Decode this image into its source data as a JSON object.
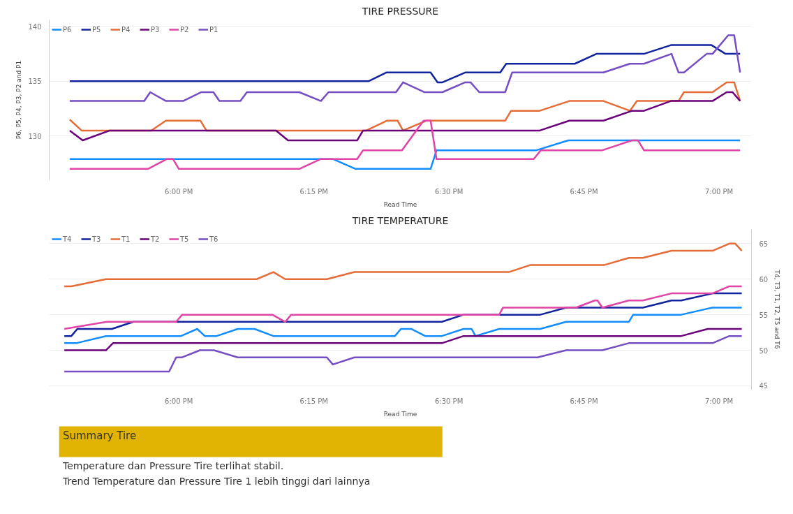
{
  "chart_data": [
    {
      "type": "line",
      "title": "TIRE PRESSURE",
      "xlabel": "Read Time",
      "ylabel": "P6, P5, P4, P3, P2 and P1",
      "legend": "top left",
      "grid": "y",
      "marker": "none",
      "line_style": "solid",
      "xlim": [
        17.76,
        19.06
      ],
      "xticks": [
        {
          "value": 18,
          "label": "6:00 PM"
        },
        {
          "value": 18.25,
          "label": "6:15 PM"
        },
        {
          "value": 18.5,
          "label": "6:30 PM"
        },
        {
          "value": 18.75,
          "label": "6:45 PM"
        },
        {
          "value": 19,
          "label": "7:00 PM"
        }
      ],
      "ylim": [
        126,
        140.6
      ],
      "yticks": [
        130,
        135,
        140
      ],
      "series": [
        {
          "name": "P6",
          "color": "#118dff",
          "x": [
            17.798,
            18.285,
            18.327,
            18.466,
            18.477,
            18.662,
            18.721,
            19.039
          ],
          "values": [
            127.9,
            127.9,
            127,
            127,
            128.7,
            128.7,
            129.6,
            129.6
          ]
        },
        {
          "name": "P5",
          "color": "#12239e",
          "x": [
            17.798,
            18.351,
            18.384,
            18.466,
            18.479,
            18.488,
            18.53,
            18.595,
            18.606,
            18.733,
            18.773,
            18.861,
            18.911,
            18.986,
            19.012,
            19.039
          ],
          "values": [
            135,
            135,
            135.8,
            135.8,
            134.9,
            134.9,
            135.8,
            135.8,
            136.6,
            136.6,
            137.5,
            137.5,
            138.3,
            138.3,
            137.5,
            137.5
          ]
        },
        {
          "name": "P4",
          "color": "#e66c37",
          "x": [
            17.798,
            17.82,
            17.949,
            17.976,
            18.04,
            18.051,
            18.347,
            18.385,
            18.405,
            18.415,
            18.458,
            18.604,
            18.615,
            18.668,
            18.723,
            18.786,
            18.835,
            18.848,
            18.925,
            18.935,
            18.988,
            19.014,
            19.028,
            19.039
          ],
          "values": [
            131.5,
            130.5,
            130.5,
            131.4,
            131.4,
            130.5,
            130.5,
            131.4,
            131.4,
            130.5,
            131.4,
            131.4,
            132.3,
            132.3,
            133.2,
            133.2,
            132.3,
            133.2,
            133.2,
            134,
            134,
            134.9,
            134.9,
            133.2
          ]
        },
        {
          "name": "P3",
          "color": "#6b007b",
          "x": [
            17.798,
            17.822,
            17.872,
            18.18,
            18.202,
            18.33,
            18.341,
            18.668,
            18.723,
            18.786,
            18.839,
            18.861,
            18.911,
            18.988,
            19.014,
            19.025,
            19.039
          ],
          "values": [
            130.5,
            129.6,
            130.5,
            130.5,
            129.6,
            129.6,
            130.5,
            130.5,
            131.4,
            131.4,
            132.3,
            132.3,
            133.2,
            133.2,
            134,
            134,
            133.2
          ]
        },
        {
          "name": "P2",
          "color": "#e044a7",
          "x": [
            17.798,
            17.943,
            17.978,
            17.989,
            18.0,
            18.223,
            18.263,
            18.33,
            18.341,
            18.413,
            18.453,
            18.466,
            18.477,
            18.657,
            18.67,
            18.784,
            18.839,
            18.85,
            18.861,
            19.039
          ],
          "values": [
            127,
            127,
            127.9,
            127.9,
            127,
            127,
            127.9,
            127.9,
            128.7,
            128.7,
            131.4,
            131.4,
            127.9,
            127.9,
            128.7,
            128.7,
            129.6,
            129.6,
            128.7,
            128.7
          ]
        },
        {
          "name": "P1",
          "color": "#744ec2",
          "x": [
            17.798,
            17.936,
            17.947,
            17.976,
            18.008,
            18.041,
            18.064,
            18.075,
            18.114,
            18.126,
            18.223,
            18.263,
            18.277,
            18.402,
            18.415,
            18.455,
            18.488,
            18.53,
            18.54,
            18.556,
            18.604,
            18.617,
            18.786,
            18.835,
            18.861,
            18.912,
            18.925,
            18.935,
            18.977,
            18.988,
            19.017,
            19.028,
            19.039
          ],
          "values": [
            133.2,
            133.2,
            134,
            133.2,
            133.2,
            134,
            134,
            133.2,
            133.2,
            134,
            134,
            133.2,
            134,
            134,
            134.9,
            134,
            134,
            134.9,
            134.9,
            134,
            134,
            135.8,
            135.8,
            136.6,
            136.6,
            137.5,
            135.8,
            135.8,
            137.5,
            137.5,
            139.2,
            139.2,
            135.8
          ]
        }
      ]
    },
    {
      "type": "line",
      "title": "TIRE TEMPERATURE",
      "xlabel": "Read Time",
      "y2label": "T4, T3, T1, T2, T5 and T6",
      "legend": "top left",
      "grid": "y",
      "marker": "none",
      "line_style": "solid",
      "xlim": [
        17.76,
        19.06
      ],
      "xticks": [
        {
          "value": 18,
          "label": "6:00 PM"
        },
        {
          "value": 18.25,
          "label": "6:15 PM"
        },
        {
          "value": 18.5,
          "label": "6:30 PM"
        },
        {
          "value": 18.75,
          "label": "6:45 PM"
        },
        {
          "value": 19,
          "label": "7:00 PM"
        }
      ],
      "y2lim": [
        44.5,
        67
      ],
      "y2ticks": [
        45,
        50,
        55,
        60,
        65
      ],
      "series": [
        {
          "name": "T4",
          "color": "#118dff",
          "axis": "y2",
          "x": [
            17.788,
            17.81,
            17.865,
            18.004,
            18.034,
            18.048,
            18.07,
            18.109,
            18.14,
            18.175,
            18.4,
            18.411,
            18.43,
            18.456,
            18.487,
            18.527,
            18.542,
            18.549,
            18.593,
            18.669,
            18.717,
            18.833,
            18.841,
            18.93,
            18.988,
            19.042
          ],
          "values": [
            51,
            51,
            52,
            52,
            53,
            52,
            52,
            53,
            53,
            52,
            52,
            53,
            53,
            52,
            52,
            53,
            53,
            52,
            53,
            53,
            54,
            54,
            55,
            55,
            56,
            56
          ]
        },
        {
          "name": "T3",
          "color": "#12239e",
          "axis": "y2",
          "x": [
            17.788,
            17.801,
            17.812,
            17.876,
            17.916,
            18.487,
            18.527,
            18.669,
            18.717,
            18.859,
            18.912,
            18.93,
            18.988,
            19.042
          ],
          "values": [
            52,
            52,
            53,
            53,
            54,
            54,
            55,
            55,
            56,
            56,
            57,
            57,
            58,
            58
          ]
        },
        {
          "name": "T1",
          "color": "#e66c37",
          "axis": "y2",
          "x": [
            17.788,
            17.801,
            17.865,
            18.144,
            18.175,
            18.197,
            18.274,
            18.325,
            18.611,
            18.651,
            18.788,
            18.833,
            18.859,
            18.912,
            18.988,
            19.019,
            19.03,
            19.042
          ],
          "values": [
            59,
            59,
            60,
            60,
            61,
            60,
            60,
            61,
            61,
            62,
            62,
            63,
            63,
            64,
            64,
            65,
            65,
            64
          ]
        },
        {
          "name": "T2",
          "color": "#6b007b",
          "axis": "y2",
          "x": [
            17.788,
            17.865,
            17.878,
            18.487,
            18.527,
            18.93,
            18.979,
            19.042
          ],
          "values": [
            50,
            50,
            51,
            51,
            52,
            52,
            53,
            53
          ]
        },
        {
          "name": "T5",
          "color": "#e044a7",
          "axis": "y2",
          "x": [
            17.788,
            17.867,
            17.995,
            18.006,
            18.173,
            18.197,
            18.208,
            18.593,
            18.6,
            18.735,
            18.77,
            18.775,
            18.784,
            18.833,
            18.859,
            18.912,
            18.988,
            19.019,
            19.042
          ],
          "values": [
            53,
            54,
            54,
            55,
            55,
            54,
            55,
            55,
            56,
            56,
            57,
            57,
            56,
            57,
            57,
            58,
            58,
            59,
            59
          ]
        },
        {
          "name": "T6",
          "color": "#744ec2",
          "axis": "y2",
          "x": [
            17.788,
            17.982,
            17.995,
            18.006,
            18.039,
            18.065,
            18.109,
            18.274,
            18.285,
            18.325,
            18.664,
            18.717,
            18.784,
            18.833,
            18.988,
            19.019,
            19.042
          ],
          "values": [
            47,
            47,
            49,
            49,
            50,
            50,
            49,
            49,
            48,
            49,
            49,
            50,
            50,
            51,
            51,
            52,
            52
          ]
        }
      ]
    },
    {
      "type": "other",
      "title": "Summary Tire",
      "annotations": [
        "Temperature dan Pressure Tire terlihat stabil.",
        "Trend Temperature dan Pressure Tire 1 lebih tinggi dari lainnya"
      ]
    }
  ]
}
